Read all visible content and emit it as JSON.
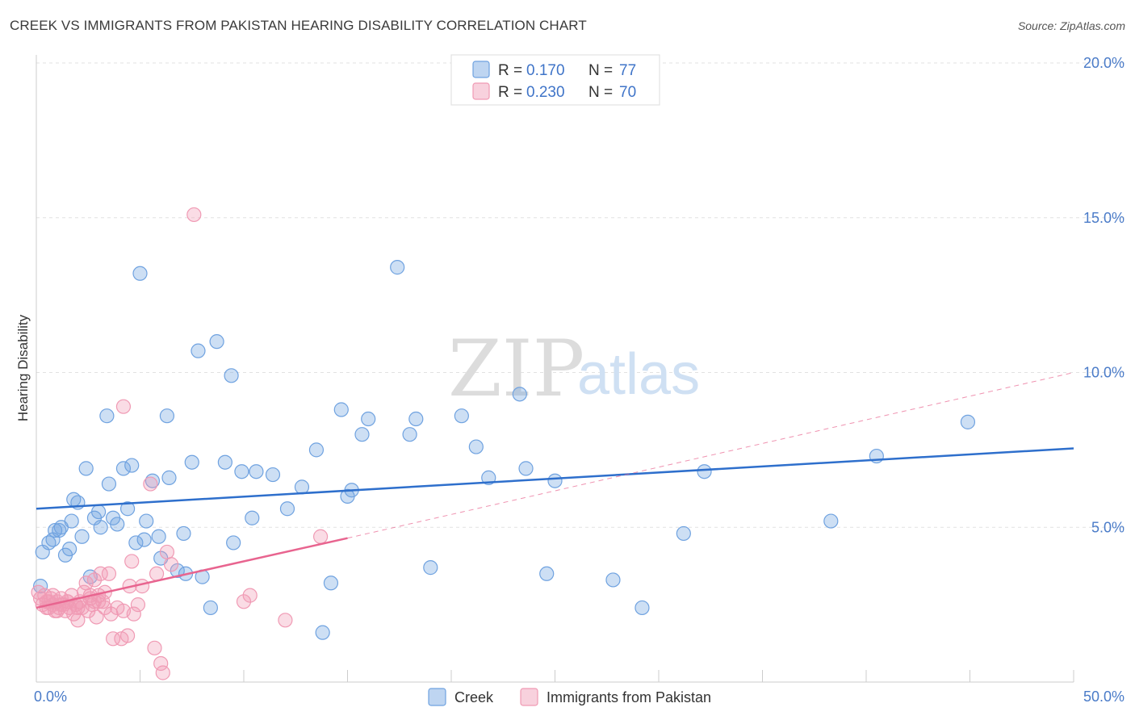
{
  "title": "CREEK VS IMMIGRANTS FROM PAKISTAN HEARING DISABILITY CORRELATION CHART",
  "source": "Source: ZipAtlas.com",
  "watermark": {
    "zip": "ZIP",
    "atlas": "atlas"
  },
  "chart_data": {
    "type": "scatter",
    "ylabel": "Hearing Disability",
    "xlim": [
      0,
      50
    ],
    "ylim": [
      0,
      20
    ],
    "x_tick_labels": [
      "0.0%",
      "50.0%"
    ],
    "y_tick_values": [
      5,
      10,
      15,
      20
    ],
    "y_tick_labels": [
      "5.0%",
      "10.0%",
      "15.0%",
      "20.0%"
    ],
    "grid": true,
    "legend_position": "top-center",
    "series": [
      {
        "name": "Creek",
        "color": "#6fa2e0",
        "line_color": "#2e6fcc",
        "R": "0.170",
        "N": "77",
        "trend": {
          "x": [
            0,
            50
          ],
          "y": [
            5.6,
            7.55
          ]
        },
        "points": [
          [
            0.2,
            3.1
          ],
          [
            0.3,
            4.2
          ],
          [
            0.6,
            4.5
          ],
          [
            0.8,
            4.6
          ],
          [
            0.9,
            4.9
          ],
          [
            1.1,
            4.9
          ],
          [
            1.2,
            5.0
          ],
          [
            1.4,
            4.1
          ],
          [
            1.6,
            4.3
          ],
          [
            1.7,
            5.2
          ],
          [
            1.8,
            5.9
          ],
          [
            2.0,
            5.8
          ],
          [
            2.2,
            4.7
          ],
          [
            2.4,
            6.9
          ],
          [
            2.6,
            3.4
          ],
          [
            2.8,
            5.3
          ],
          [
            3.0,
            5.5
          ],
          [
            3.1,
            5.0
          ],
          [
            3.4,
            8.6
          ],
          [
            3.5,
            6.4
          ],
          [
            3.7,
            5.3
          ],
          [
            3.9,
            5.1
          ],
          [
            4.2,
            6.9
          ],
          [
            4.4,
            5.6
          ],
          [
            4.6,
            7.0
          ],
          [
            4.8,
            4.5
          ],
          [
            5.0,
            13.2
          ],
          [
            5.2,
            4.6
          ],
          [
            5.3,
            5.2
          ],
          [
            5.6,
            6.5
          ],
          [
            5.9,
            4.7
          ],
          [
            6.0,
            4.0
          ],
          [
            6.3,
            8.6
          ],
          [
            6.4,
            6.6
          ],
          [
            6.8,
            3.6
          ],
          [
            7.1,
            4.8
          ],
          [
            7.2,
            3.5
          ],
          [
            7.5,
            7.1
          ],
          [
            7.8,
            10.7
          ],
          [
            8.0,
            3.4
          ],
          [
            8.4,
            2.4
          ],
          [
            8.7,
            11.0
          ],
          [
            9.1,
            7.1
          ],
          [
            9.4,
            9.9
          ],
          [
            9.5,
            4.5
          ],
          [
            9.9,
            6.8
          ],
          [
            10.4,
            5.3
          ],
          [
            10.6,
            6.8
          ],
          [
            11.4,
            6.7
          ],
          [
            12.1,
            5.6
          ],
          [
            12.8,
            6.3
          ],
          [
            13.5,
            7.5
          ],
          [
            14.2,
            3.2
          ],
          [
            13.8,
            1.6
          ],
          [
            14.7,
            8.8
          ],
          [
            15.2,
            6.2
          ],
          [
            15.7,
            8.0
          ],
          [
            16.0,
            8.5
          ],
          [
            17.4,
            13.4
          ],
          [
            18.0,
            8.0
          ],
          [
            18.3,
            8.5
          ],
          [
            19.0,
            3.7
          ],
          [
            20.5,
            8.6
          ],
          [
            21.2,
            7.6
          ],
          [
            21.8,
            6.6
          ],
          [
            23.3,
            9.3
          ],
          [
            23.6,
            6.9
          ],
          [
            24.6,
            3.5
          ],
          [
            25.0,
            6.5
          ],
          [
            27.8,
            3.3
          ],
          [
            29.2,
            2.4
          ],
          [
            31.2,
            4.8
          ],
          [
            32.2,
            6.8
          ],
          [
            38.3,
            5.2
          ],
          [
            40.5,
            7.3
          ],
          [
            44.9,
            8.4
          ],
          [
            15.0,
            6.0
          ]
        ]
      },
      {
        "name": "Immigrants from Pakistan",
        "color": "#f09ab4",
        "line_color": "#e8648f",
        "R": "0.230",
        "N": "70",
        "trend": {
          "x": [
            0,
            15
          ],
          "y": [
            2.4,
            4.65
          ]
        },
        "trend_dashed": {
          "x": [
            15,
            50
          ],
          "y": [
            4.65,
            10.0
          ]
        },
        "points": [
          [
            0.1,
            2.9
          ],
          [
            0.2,
            2.7
          ],
          [
            0.3,
            2.5
          ],
          [
            0.4,
            2.8
          ],
          [
            0.5,
            2.6
          ],
          [
            0.6,
            2.4
          ],
          [
            0.7,
            2.7
          ],
          [
            0.8,
            2.5
          ],
          [
            0.9,
            2.3
          ],
          [
            1.0,
            2.6
          ],
          [
            1.1,
            2.4
          ],
          [
            1.2,
            2.7
          ],
          [
            1.3,
            2.5
          ],
          [
            1.4,
            2.3
          ],
          [
            1.5,
            2.6
          ],
          [
            1.6,
            2.4
          ],
          [
            1.7,
            2.8
          ],
          [
            1.8,
            2.2
          ],
          [
            1.9,
            2.5
          ],
          [
            2.0,
            2.0
          ],
          [
            2.1,
            2.6
          ],
          [
            2.2,
            2.4
          ],
          [
            2.3,
            2.9
          ],
          [
            2.4,
            3.2
          ],
          [
            2.5,
            2.3
          ],
          [
            2.6,
            2.7
          ],
          [
            2.7,
            2.5
          ],
          [
            2.8,
            3.3
          ],
          [
            2.9,
            2.1
          ],
          [
            3.0,
            2.8
          ],
          [
            3.1,
            3.5
          ],
          [
            3.2,
            2.6
          ],
          [
            3.3,
            2.4
          ],
          [
            3.5,
            3.5
          ],
          [
            3.6,
            2.2
          ],
          [
            3.7,
            1.4
          ],
          [
            3.9,
            2.4
          ],
          [
            4.1,
            1.4
          ],
          [
            4.2,
            2.3
          ],
          [
            4.4,
            1.5
          ],
          [
            4.5,
            3.1
          ],
          [
            4.6,
            3.9
          ],
          [
            4.7,
            2.2
          ],
          [
            4.9,
            2.5
          ],
          [
            5.1,
            3.1
          ],
          [
            5.5,
            6.4
          ],
          [
            5.7,
            1.1
          ],
          [
            5.8,
            3.5
          ],
          [
            6.0,
            0.6
          ],
          [
            6.1,
            0.3
          ],
          [
            6.3,
            4.2
          ],
          [
            6.5,
            3.8
          ],
          [
            7.6,
            15.1
          ],
          [
            10.0,
            2.6
          ],
          [
            10.3,
            2.8
          ],
          [
            12.0,
            2.0
          ],
          [
            13.7,
            4.7
          ],
          [
            4.2,
            8.9
          ],
          [
            1.5,
            2.6
          ],
          [
            2.0,
            2.4
          ],
          [
            0.5,
            2.4
          ],
          [
            0.8,
            2.8
          ],
          [
            1.9,
            2.5
          ],
          [
            3.0,
            2.6
          ],
          [
            3.3,
            2.9
          ],
          [
            2.8,
            2.6
          ],
          [
            1.0,
            2.3
          ],
          [
            0.6,
            2.6
          ],
          [
            2.6,
            2.8
          ],
          [
            1.2,
            2.5
          ]
        ]
      }
    ]
  }
}
